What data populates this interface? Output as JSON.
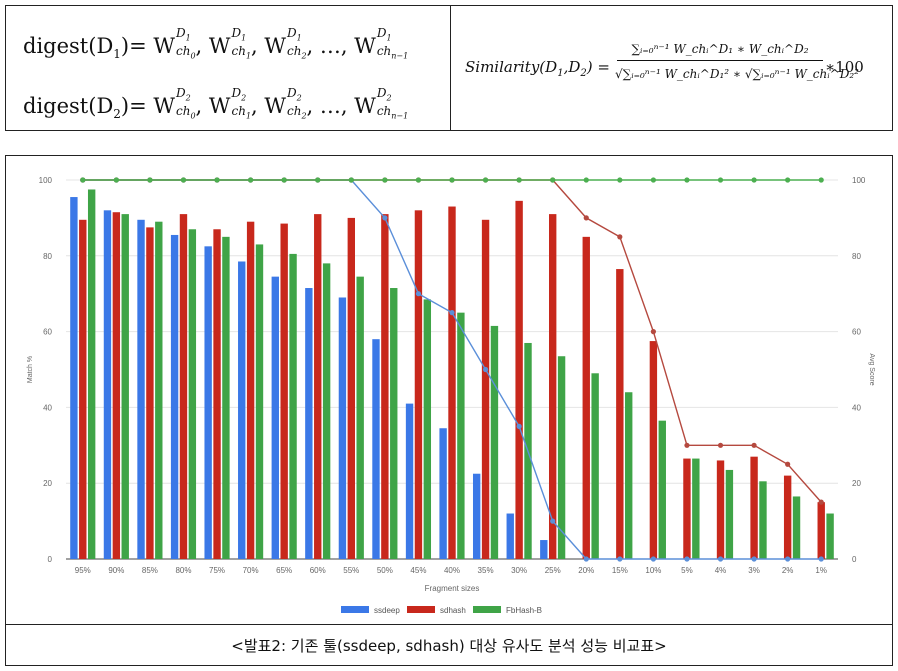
{
  "formulas": {
    "digest1": {
      "lhs": "digest(D",
      "sub": "1",
      "rhs": ")= ",
      "doc": "D",
      "doc_sub": "1"
    },
    "digest2": {
      "lhs": "digest(D",
      "sub": "2",
      "rhs": ")= ",
      "doc": "D",
      "doc_sub": "2"
    },
    "w": "W",
    "ch_terms": [
      "ch",
      "ch",
      "ch",
      "ch"
    ],
    "ch_subs": [
      "0",
      "1",
      "2",
      "n−1"
    ],
    "ellipsis": ", …, ",
    "similarity": {
      "label": "Similarity(D",
      "label_sub1": "1",
      "label_mid": ",D",
      "label_sub2": "2",
      "label_end": ") = ",
      "numerator": "∑ᵢ₌₀ⁿ⁻¹ W_chᵢ^D₁ ∗ W_chᵢ^D₂",
      "denominator": "√∑ᵢ₌₀ⁿ⁻¹ W_chᵢ^D₁² ∗ √∑ᵢ₌₀ⁿ⁻¹ W_chᵢ^D₂²",
      "multiplier": "∗100"
    }
  },
  "chart_data": {
    "type": "bar",
    "xlabel": "Fragment sizes",
    "ylabel": "Match %",
    "y2label": "Avg Score",
    "ylim": [
      0,
      100
    ],
    "y2lim": [
      0,
      100
    ],
    "yticks": [
      0,
      20,
      40,
      60,
      80,
      100
    ],
    "categories": [
      "95%",
      "90%",
      "85%",
      "80%",
      "75%",
      "70%",
      "65%",
      "60%",
      "55%",
      "50%",
      "45%",
      "40%",
      "35%",
      "30%",
      "25%",
      "20%",
      "15%",
      "10%",
      "5%",
      "4%",
      "3%",
      "2%",
      "1%"
    ],
    "series": [
      {
        "name": "ssdeep",
        "color": "#3b78e7",
        "values": [
          95.5,
          92,
          89.5,
          85.5,
          82.5,
          78.5,
          74.5,
          71.5,
          69,
          58,
          41,
          34.5,
          22.5,
          12,
          5,
          0,
          0,
          0,
          0,
          0,
          0,
          0,
          0
        ]
      },
      {
        "name": "sdhash",
        "color": "#c8281c",
        "values": [
          89.5,
          91.5,
          87.5,
          91,
          87,
          89,
          88.5,
          91,
          90,
          91,
          92,
          93,
          89.5,
          94.5,
          91,
          85,
          76.5,
          57.5,
          26.5,
          26,
          27,
          22,
          15
        ]
      },
      {
        "name": "FbHash-B",
        "color": "#3fa447",
        "values": [
          97.5,
          91,
          89,
          87,
          85,
          83,
          80.5,
          78,
          74.5,
          71.5,
          68.5,
          65,
          61.5,
          57,
          53.5,
          49,
          44,
          36.5,
          26.5,
          23.5,
          20.5,
          16.5,
          12
        ]
      }
    ],
    "lines": [
      {
        "name": "ssdeep",
        "axis": "right",
        "color": "#5b8fd9",
        "values": [
          100,
          100,
          100,
          100,
          100,
          100,
          100,
          100,
          100,
          90,
          70,
          65,
          50,
          35,
          10,
          0,
          0,
          0,
          0,
          0,
          0,
          0,
          0
        ]
      },
      {
        "name": "sdhash",
        "axis": "right",
        "color": "#b5493f",
        "values": [
          100,
          100,
          100,
          100,
          100,
          100,
          100,
          100,
          100,
          100,
          100,
          100,
          100,
          100,
          100,
          90,
          85,
          60,
          30,
          30,
          30,
          25,
          15
        ]
      },
      {
        "name": "FbHash-B",
        "axis": "right",
        "color": "#4caf50",
        "values": [
          100,
          100,
          100,
          100,
          100,
          100,
          100,
          100,
          100,
          100,
          100,
          100,
          100,
          100,
          100,
          100,
          100,
          100,
          100,
          100,
          100,
          100,
          100
        ]
      }
    ],
    "legend": [
      "ssdeep",
      "sdhash",
      "FbHash-B"
    ],
    "legend_position": "bottom",
    "grid": true
  },
  "caption": "<발표2: 기존 툴(ssdeep, sdhash) 대상 유사도 분석 성능 비교표>"
}
